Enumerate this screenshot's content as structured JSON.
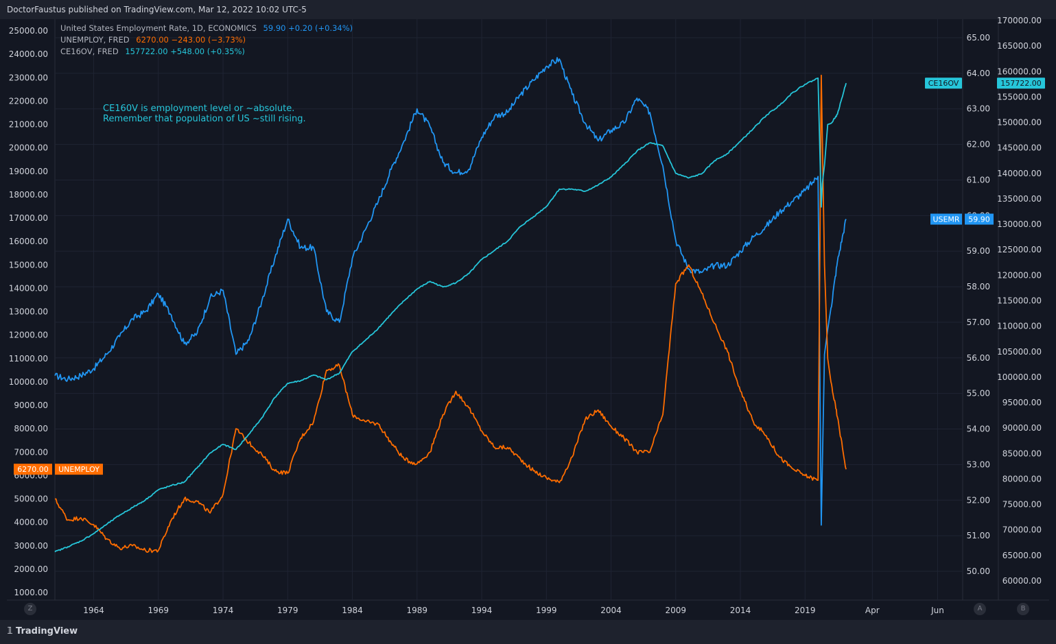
{
  "header": {
    "publish_text": "DoctorFaustus published on TradingView.com, Mar 12, 2022 10:02 UTC-5"
  },
  "legend": [
    {
      "name": "United States Employment Rate, 1D, ECONOMICS",
      "value": "59.90",
      "change": "+0.20 (+0.34%)",
      "color": "#2196f3"
    },
    {
      "name": "UNEMPLOY, FRED",
      "value": "6270.00",
      "change": "−243.00 (−3.73%)",
      "color": "#ff6d00"
    },
    {
      "name": "CE16OV, FRED",
      "value": "157722.00",
      "change": "+548.00 (+0.35%)",
      "color": "#26c6da"
    }
  ],
  "annotation": {
    "line1": "CE160V is employment level or ~absolute.",
    "line2": "Remember that population of US ~still rising."
  },
  "footer": {
    "logo_text": "TradingView",
    "btn_z": "Z",
    "btn_a": "A",
    "btn_b": "B"
  },
  "colors": {
    "usemr": "#2196f3",
    "unemploy": "#ff6d00",
    "ce16ov": "#26c6da",
    "background": "#131722",
    "grid": "#1f2433"
  },
  "chart_data": {
    "type": "line",
    "x_ticks": [
      "1964",
      "1969",
      "1974",
      "1979",
      "1984",
      "1989",
      "1994",
      "1999",
      "2004",
      "2009",
      "2014",
      "2019",
      "Apr",
      "Jun"
    ],
    "left_axis": {
      "ticks": [
        "25000.00",
        "24000.00",
        "23000.00",
        "22000.00",
        "21000.00",
        "20000.00",
        "19000.00",
        "18000.00",
        "17000.00",
        "16000.00",
        "15000.00",
        "14000.00",
        "13000.00",
        "12000.00",
        "11000.00",
        "10000.00",
        "9000.00",
        "8000.00",
        "7000.00",
        "6000.00",
        "5000.00",
        "4000.00",
        "3000.00",
        "2000.00",
        "1000.00"
      ],
      "range": [
        1000,
        25000
      ]
    },
    "mid_axis": {
      "ticks": [
        "65.00",
        "64.00",
        "63.00",
        "62.00",
        "61.00",
        "60.00",
        "59.00",
        "58.00",
        "57.00",
        "56.00",
        "55.00",
        "54.00",
        "53.00",
        "52.00",
        "51.00",
        "50.00"
      ],
      "range": [
        50,
        65
      ]
    },
    "right_axis": {
      "ticks": [
        "170000.00",
        "165000.00",
        "160000.00",
        "155000.00",
        "150000.00",
        "145000.00",
        "140000.00",
        "135000.00",
        "130000.00",
        "125000.00",
        "120000.00",
        "115000.00",
        "110000.00",
        "105000.00",
        "100000.00",
        "95000.00",
        "90000.00",
        "85000.00",
        "80000.00",
        "75000.00",
        "70000.00",
        "65000.00",
        "60000.00"
      ],
      "range": [
        60000,
        170000
      ]
    },
    "price_labels": {
      "ce16ov": {
        "tag": "CE16OV",
        "value": "157722.00"
      },
      "usemr": {
        "tag": "USEMR",
        "value": "59.90"
      },
      "unemploy": {
        "tag": "UNEMPLOY",
        "value": "6270.00"
      }
    },
    "series": [
      {
        "name": "USEMR",
        "axis": "mid",
        "color": "#2196f3",
        "x": [
          1961.0,
          1962.0,
          1963.0,
          1964.0,
          1965.0,
          1966.0,
          1967.0,
          1968.0,
          1969.0,
          1970.0,
          1971.0,
          1972.0,
          1973.0,
          1974.0,
          1975.0,
          1976.0,
          1977.0,
          1978.0,
          1979.0,
          1980.0,
          1981.0,
          1982.0,
          1983.0,
          1984.0,
          1985.0,
          1986.0,
          1987.0,
          1988.0,
          1989.0,
          1990.0,
          1991.0,
          1992.0,
          1993.0,
          1994.0,
          1995.0,
          1996.0,
          1997.0,
          1998.0,
          1999.0,
          2000.0,
          2001.0,
          2002.0,
          2003.0,
          2004.0,
          2005.0,
          2006.0,
          2007.0,
          2008.0,
          2009.0,
          2010.0,
          2011.0,
          2012.0,
          2013.0,
          2014.0,
          2015.0,
          2016.0,
          2017.0,
          2018.0,
          2019.0,
          2020.0,
          2020.25,
          2020.33,
          2020.5,
          2020.75,
          2021.0,
          2021.5,
          2022.17
        ],
        "y": [
          55.5,
          55.4,
          55.5,
          55.7,
          56.1,
          56.6,
          57.1,
          57.3,
          57.8,
          57.2,
          56.4,
          56.7,
          57.7,
          57.9,
          56.1,
          56.5,
          57.6,
          58.8,
          59.9,
          59.1,
          59.1,
          57.3,
          57.0,
          58.8,
          59.6,
          60.4,
          61.3,
          62.1,
          63.0,
          62.5,
          61.5,
          61.2,
          61.3,
          62.2,
          62.8,
          62.9,
          63.4,
          63.8,
          64.2,
          64.4,
          63.4,
          62.6,
          62.1,
          62.4,
          62.6,
          63.3,
          62.9,
          61.4,
          59.3,
          58.5,
          58.4,
          58.6,
          58.6,
          59.0,
          59.4,
          59.7,
          60.1,
          60.4,
          60.7,
          61.1,
          51.3,
          52.9,
          56.1,
          56.8,
          57.4,
          58.7,
          59.9
        ]
      },
      {
        "name": "UNEMPLOY",
        "axis": "left",
        "color": "#ff6d00",
        "x": [
          1961.0,
          1962.0,
          1963.0,
          1964.0,
          1965.0,
          1966.0,
          1967.0,
          1968.0,
          1969.0,
          1970.0,
          1971.0,
          1972.0,
          1973.0,
          1974.0,
          1975.0,
          1976.0,
          1977.0,
          1978.0,
          1979.0,
          1980.0,
          1981.0,
          1982.0,
          1983.0,
          1984.0,
          1985.0,
          1986.0,
          1987.0,
          1988.0,
          1989.0,
          1990.0,
          1991.0,
          1992.0,
          1993.0,
          1994.0,
          1995.0,
          1996.0,
          1997.0,
          1998.0,
          1999.0,
          2000.0,
          2001.0,
          2002.0,
          2003.0,
          2004.0,
          2005.0,
          2006.0,
          2007.0,
          2008.0,
          2009.0,
          2010.0,
          2011.0,
          2012.0,
          2013.0,
          2014.0,
          2015.0,
          2016.0,
          2017.0,
          2018.0,
          2019.0,
          2020.0,
          2020.25,
          2020.33,
          2020.5,
          2020.75,
          2021.0,
          2021.5,
          2022.17
        ],
        "y": [
          5000,
          4100,
          4200,
          3900,
          3300,
          2900,
          3000,
          2800,
          2800,
          4100,
          5000,
          4900,
          4400,
          5200,
          8000,
          7400,
          6900,
          6200,
          6100,
          7600,
          8300,
          10500,
          10700,
          8600,
          8300,
          8200,
          7400,
          6700,
          6500,
          7000,
          8600,
          9600,
          8900,
          7900,
          7200,
          7200,
          6700,
          6200,
          5900,
          5700,
          6800,
          8400,
          8800,
          8100,
          7600,
          7000,
          7000,
          8600,
          14200,
          15000,
          13800,
          12500,
          11300,
          9600,
          8300,
          7700,
          6800,
          6300,
          6000,
          5800,
          23100,
          20500,
          15000,
          11000,
          10000,
          8500,
          6270
        ]
      },
      {
        "name": "CE16OV",
        "axis": "right",
        "color": "#26c6da",
        "x": [
          1961.0,
          1962.0,
          1963.0,
          1964.0,
          1965.0,
          1966.0,
          1967.0,
          1968.0,
          1969.0,
          1970.0,
          1971.0,
          1972.0,
          1973.0,
          1974.0,
          1975.0,
          1976.0,
          1977.0,
          1978.0,
          1979.0,
          1980.0,
          1981.0,
          1982.0,
          1983.0,
          1984.0,
          1985.0,
          1986.0,
          1987.0,
          1988.0,
          1989.0,
          1990.0,
          1991.0,
          1992.0,
          1993.0,
          1994.0,
          1995.0,
          1996.0,
          1997.0,
          1998.0,
          1999.0,
          2000.0,
          2001.0,
          2002.0,
          2003.0,
          2004.0,
          2005.0,
          2006.0,
          2007.0,
          2008.0,
          2009.0,
          2010.0,
          2011.0,
          2012.0,
          2013.0,
          2014.0,
          2015.0,
          2016.0,
          2017.0,
          2018.0,
          2019.0,
          2020.0,
          2020.25,
          2020.33,
          2020.5,
          2020.75,
          2021.0,
          2021.5,
          2022.17
        ],
        "y": [
          65700,
          66700,
          67800,
          69300,
          71100,
          72900,
          74400,
          75900,
          77900,
          78700,
          79400,
          82200,
          85100,
          86800,
          85800,
          88800,
          92000,
          96000,
          98800,
          99300,
          100400,
          99500,
          100800,
          105000,
          107200,
          109600,
          112400,
          115000,
          117300,
          118800,
          117700,
          118500,
          120300,
          123100,
          124900,
          126700,
          129600,
          131500,
          133500,
          136900,
          136900,
          136500,
          137700,
          139300,
          141700,
          144400,
          146000,
          145400,
          140000,
          139100,
          139900,
          142500,
          143900,
          146300,
          148800,
          151400,
          153300,
          155800,
          157500,
          158700,
          133400,
          138000,
          141600,
          149600,
          149800,
          151600,
          157722
        ]
      }
    ]
  }
}
